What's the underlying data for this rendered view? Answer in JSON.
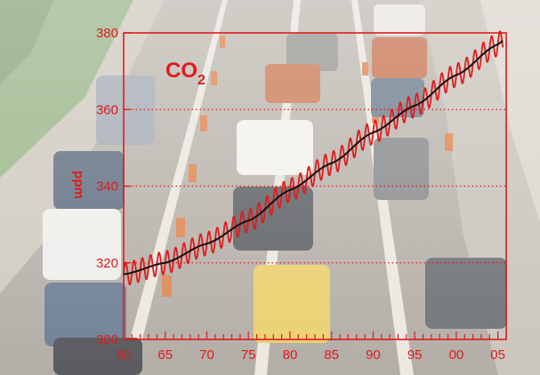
{
  "chart_data": {
    "type": "line",
    "title_main": "CO",
    "title_sub": "2",
    "ylabel": "ppm",
    "xlim": [
      1960,
      2006
    ],
    "ylim": [
      300,
      380
    ],
    "x_ticks": [
      1960,
      1965,
      1970,
      1975,
      1980,
      1985,
      1990,
      1995,
      2000,
      2005
    ],
    "x_tick_labels": [
      "60",
      "65",
      "70",
      "75",
      "80",
      "85",
      "90",
      "95",
      "00",
      "05"
    ],
    "y_ticks": [
      300,
      320,
      340,
      360,
      380
    ],
    "y_tick_labels": [
      "300",
      "320",
      "340",
      "360",
      "380"
    ],
    "grid": "horizontal dotted at 320, 340, 360",
    "series": [
      {
        "style": "seasonal",
        "color": "#e01b1b",
        "amplitude": 3,
        "trend_points": [
          [
            1960,
            317
          ],
          [
            1965,
            320
          ],
          [
            1970,
            325
          ],
          [
            1975,
            331
          ],
          [
            1980,
            339
          ],
          [
            1985,
            346
          ],
          [
            1990,
            354
          ],
          [
            1995,
            361
          ],
          [
            2000,
            369
          ],
          [
            2005,
            377
          ]
        ]
      },
      {
        "style": "trend",
        "color": "#111111",
        "points": [
          [
            1960,
            317
          ],
          [
            1965,
            320
          ],
          [
            1970,
            325
          ],
          [
            1975,
            331
          ],
          [
            1980,
            339
          ],
          [
            1985,
            346
          ],
          [
            1990,
            354
          ],
          [
            1995,
            361
          ],
          [
            2000,
            369
          ],
          [
            2005,
            377
          ]
        ]
      }
    ]
  },
  "colors": {
    "accent": "#e01b1b",
    "trend": "#111111"
  }
}
